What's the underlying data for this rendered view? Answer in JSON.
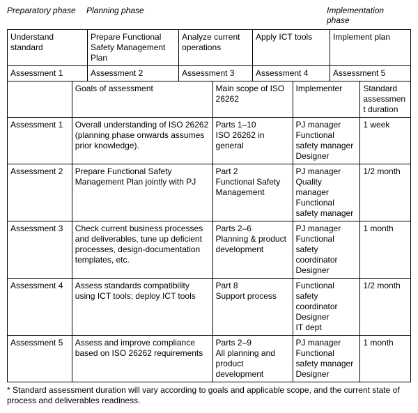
{
  "phases": {
    "prep": "Preparatory phase",
    "plan": "Planning phase",
    "impl": "Implementation phase"
  },
  "t1": {
    "widths": [
      114,
      130,
      105,
      110,
      115
    ],
    "r1": {
      "c1": "Understand standard",
      "c2": "Prepare Functional Safety Management Plan",
      "c3": "Analyze current operations",
      "c4": "Apply ICT tools",
      "c5": "Implement plan"
    },
    "r2": {
      "c1": "Assessment 1",
      "c2": "Assessment 2",
      "c3": "Assessment 3",
      "c4": "Assessment 4",
      "c5": "Assessment 5"
    }
  },
  "t2": {
    "widths": [
      92,
      200,
      114,
      96,
      72
    ],
    "head": {
      "c1": "",
      "c2": "Goals of assessment",
      "c3": "Main scope of ISO 26262",
      "c4": "Implementer",
      "c5": "Standard assessment duration"
    },
    "rows": [
      {
        "c1": "Assessment 1",
        "c2": "Overall understanding of ISO 26262 (planning phase onwards assumes prior knowledge).",
        "c3": "Parts 1–10\nISO 26262 in general",
        "c4": "PJ manager\nFunctional safety manager\nDesigner",
        "c5": "1 week"
      },
      {
        "c1": "Assessment 2",
        "c2": "Prepare Functional Safety Management Plan jointly with PJ",
        "c3": "Part 2\nFunctional Safety Management",
        "c4": "PJ manager\nQuality manager\nFunctional safety manager",
        "c5": "1/2 month"
      },
      {
        "c1": "Assessment 3",
        "c2": "Check current business processes and deliverables, tune up deficient processes, design-documentation templates, etc.",
        "c3": "Parts 2–6\nPlanning & product development",
        "c4": "PJ manager\nFunctional safety coordinator\nDesigner",
        "c5": "1 month"
      },
      {
        "c1": "Assessment 4",
        "c2": "Assess standards compatibility using ICT tools; deploy ICT tools",
        "c3": "Part 8\nSupport process",
        "c4": "Functional safety coordinator\nDesigner\nIT dept",
        "c5": "1/2 month"
      },
      {
        "c1": "Assessment 5",
        "c2": "Assess and improve compliance based on ISO 26262 requirements",
        "c3": "Parts 2–9\nAll planning and product development",
        "c4": "PJ manager\nFunctional safety manager\nDesigner",
        "c5": "1 month"
      }
    ]
  },
  "footnote": "* Standard assessment duration will vary according to goals and applicable scope, and the current state of process and deliverables readiness.",
  "colors": {
    "text": "#000000",
    "background": "#ffffff",
    "border": "#000000"
  }
}
